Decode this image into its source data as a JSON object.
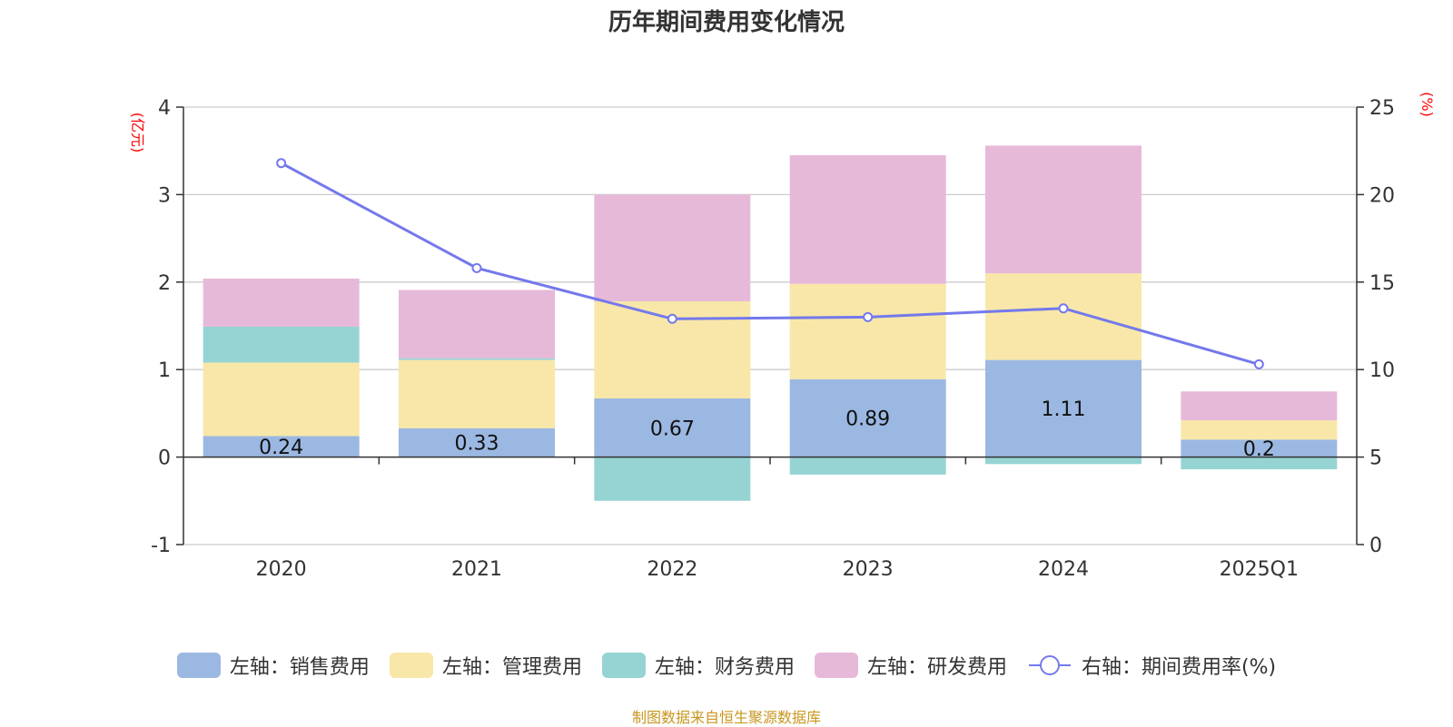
{
  "title": "历年期间费用变化情况",
  "source": "制图数据来自恒生聚源数据库",
  "chart_data": {
    "type": "bar",
    "stacked": true,
    "title": "历年期间费用变化情况",
    "categories": [
      "2020",
      "2021",
      "2022",
      "2023",
      "2024",
      "2025Q1"
    ],
    "left_axis": {
      "unit": "(亿元)",
      "ylim": [
        -1,
        4
      ],
      "ticks": [
        "-1",
        "0",
        "1",
        "2",
        "3",
        "4"
      ]
    },
    "right_axis": {
      "unit": "(%)",
      "ylim": [
        0,
        25
      ],
      "ticks": [
        "0",
        "5",
        "10",
        "15",
        "20",
        "25"
      ]
    },
    "series": [
      {
        "name": "左轴：销售费用",
        "axis": "left",
        "color": "#9bb8e2",
        "values": [
          0.24,
          0.33,
          0.67,
          0.89,
          1.11,
          0.2
        ],
        "labels": [
          "0.24",
          "0.33",
          "0.67",
          "0.89",
          "1.11",
          "0.2"
        ]
      },
      {
        "name": "左轴：管理费用",
        "axis": "left",
        "color": "#f8e7a8",
        "values": [
          0.84,
          0.78,
          1.11,
          1.09,
          0.99,
          0.22
        ]
      },
      {
        "name": "左轴：财务费用",
        "axis": "left",
        "color": "#96d4d4",
        "values": [
          0.41,
          0.02,
          -0.5,
          -0.2,
          -0.08,
          -0.14
        ]
      },
      {
        "name": "左轴：研发费用",
        "axis": "left",
        "color": "#e7b9d9",
        "values": [
          0.55,
          0.78,
          1.22,
          1.47,
          1.46,
          0.33
        ]
      },
      {
        "name": "右轴：期间费用率(%)",
        "axis": "right",
        "type": "line",
        "color": "#7479eb",
        "values": [
          21.8,
          15.8,
          12.9,
          13.0,
          13.5,
          10.3
        ]
      }
    ],
    "axis_label_color": "#ff0000",
    "grid": true,
    "legend_position": "bottom"
  }
}
